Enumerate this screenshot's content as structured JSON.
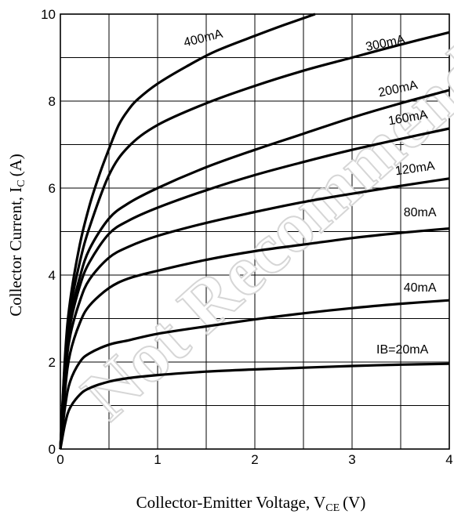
{
  "watermark": "Not Recommended",
  "chart_data": {
    "type": "line",
    "xlabel_main": "Collector-Emitter Voltage, V",
    "xlabel_sub": "CE",
    "xlabel_unit": "(V)",
    "ylabel_main": "Collector Current, I",
    "ylabel_sub": "C",
    "ylabel_unit": "(A)",
    "xlim": [
      0,
      4
    ],
    "ylim": [
      0,
      10
    ],
    "xticks": [
      0,
      1,
      2,
      3,
      4
    ],
    "yticks": [
      0,
      2,
      4,
      6,
      8,
      10
    ],
    "grid": true,
    "series": [
      {
        "name": "IB=20mA",
        "label": "IB=20mA",
        "x": [
          0,
          0.05,
          0.1,
          0.2,
          0.3,
          0.5,
          0.7,
          1.0,
          1.5,
          2.0,
          2.5,
          3.0,
          3.5,
          4.0
        ],
        "y": [
          0,
          0.6,
          0.95,
          1.25,
          1.4,
          1.55,
          1.63,
          1.7,
          1.78,
          1.83,
          1.87,
          1.91,
          1.94,
          1.96
        ]
      },
      {
        "name": "40mA",
        "label": "40mA",
        "x": [
          0,
          0.05,
          0.1,
          0.2,
          0.3,
          0.5,
          0.7,
          1.0,
          1.5,
          2.0,
          2.5,
          3.0,
          3.5,
          4.0
        ],
        "y": [
          0,
          1.0,
          1.55,
          2.0,
          2.2,
          2.4,
          2.5,
          2.65,
          2.82,
          2.98,
          3.12,
          3.24,
          3.34,
          3.42
        ]
      },
      {
        "name": "80mA",
        "label": "80mA",
        "x": [
          0,
          0.05,
          0.1,
          0.2,
          0.3,
          0.5,
          0.7,
          1.0,
          1.5,
          2.0,
          2.5,
          3.0,
          3.5,
          4.0
        ],
        "y": [
          0,
          1.4,
          2.2,
          2.9,
          3.3,
          3.7,
          3.92,
          4.1,
          4.35,
          4.55,
          4.7,
          4.85,
          4.97,
          5.07
        ]
      },
      {
        "name": "120mA",
        "label": "120mA",
        "x": [
          0,
          0.05,
          0.1,
          0.2,
          0.3,
          0.5,
          0.7,
          1.0,
          1.5,
          2.0,
          2.5,
          3.0,
          3.5,
          4.0
        ],
        "y": [
          0,
          1.7,
          2.6,
          3.4,
          3.9,
          4.4,
          4.65,
          4.9,
          5.2,
          5.45,
          5.68,
          5.87,
          6.05,
          6.22
        ]
      },
      {
        "name": "160mA",
        "label": "160mA",
        "x": [
          0,
          0.05,
          0.1,
          0.2,
          0.3,
          0.5,
          0.7,
          1.0,
          1.5,
          2.0,
          2.5,
          3.0,
          3.5,
          4.0
        ],
        "y": [
          0,
          1.9,
          2.85,
          3.75,
          4.3,
          4.95,
          5.25,
          5.55,
          5.95,
          6.3,
          6.6,
          6.88,
          7.13,
          7.37
        ]
      },
      {
        "name": "200mA",
        "label": "200mA",
        "x": [
          0,
          0.05,
          0.1,
          0.2,
          0.3,
          0.5,
          0.7,
          1.0,
          1.5,
          2.0,
          2.5,
          3.0,
          3.5,
          4.0
        ],
        "y": [
          0,
          2.0,
          3.0,
          3.95,
          4.6,
          5.3,
          5.65,
          6.0,
          6.48,
          6.88,
          7.25,
          7.62,
          7.95,
          8.25
        ]
      },
      {
        "name": "300mA",
        "label": "300mA",
        "x": [
          0,
          0.05,
          0.1,
          0.2,
          0.3,
          0.5,
          0.7,
          1.0,
          1.5,
          2.0,
          2.5,
          3.0,
          3.5,
          4.0
        ],
        "y": [
          0,
          2.1,
          3.2,
          4.3,
          5.1,
          6.3,
          6.95,
          7.45,
          7.95,
          8.35,
          8.7,
          9.0,
          9.3,
          9.58
        ]
      },
      {
        "name": "400mA",
        "label": "400mA",
        "x": [
          0,
          0.05,
          0.1,
          0.2,
          0.3,
          0.4,
          0.5,
          0.6,
          0.7,
          0.8,
          1.0,
          1.3,
          1.6,
          2.0,
          2.3,
          2.62
        ],
        "y": [
          0,
          2.2,
          3.4,
          4.7,
          5.6,
          6.3,
          6.9,
          7.45,
          7.8,
          8.05,
          8.4,
          8.8,
          9.15,
          9.5,
          9.75,
          10.0
        ]
      }
    ],
    "labels": [
      {
        "text": "400mA",
        "x": 1.28,
        "y": 9.25,
        "rotate": -14
      },
      {
        "text": "300mA",
        "x": 3.15,
        "y": 9.15,
        "rotate": -12
      },
      {
        "text": "200mA",
        "x": 3.28,
        "y": 8.1,
        "rotate": -12
      },
      {
        "text": "160mA",
        "x": 3.38,
        "y": 7.45,
        "rotate": -10
      },
      {
        "text": "120mA",
        "x": 3.45,
        "y": 6.3,
        "rotate": -8
      },
      {
        "text": "80mA",
        "x": 3.53,
        "y": 5.35,
        "rotate": 0
      },
      {
        "text": "40mA",
        "x": 3.53,
        "y": 3.62,
        "rotate": 0
      },
      {
        "text": "IB=20mA",
        "x": 3.25,
        "y": 2.2,
        "rotate": 0
      }
    ]
  }
}
